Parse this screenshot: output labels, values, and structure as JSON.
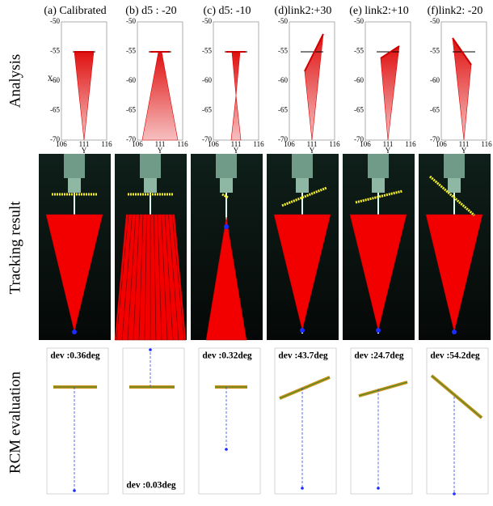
{
  "row_labels": [
    "Analysis",
    "Tracking result",
    "RCM evaluation"
  ],
  "columns": [
    {
      "title": "(a) Calibrated",
      "dev": "dev :0.36deg"
    },
    {
      "title": "(b) d5 : -20",
      "dev": "dev :0.03deg"
    },
    {
      "title": "(c) d5: -10",
      "dev": "dev :0.32deg"
    },
    {
      "title": "(d)link2:+30",
      "dev": "dev :43.7deg"
    },
    {
      "title": "(e) link2:+10",
      "dev": "dev :24.7deg"
    },
    {
      "title": "(f)link2: -20",
      "dev": "dev :54.2deg"
    }
  ],
  "analysis_axes": {
    "x_label": "Y",
    "y_label": "X",
    "yticks": [
      "-50",
      "-55",
      "-60",
      "-65",
      "-70"
    ],
    "xticks": [
      "106",
      "111",
      "116"
    ]
  }
}
